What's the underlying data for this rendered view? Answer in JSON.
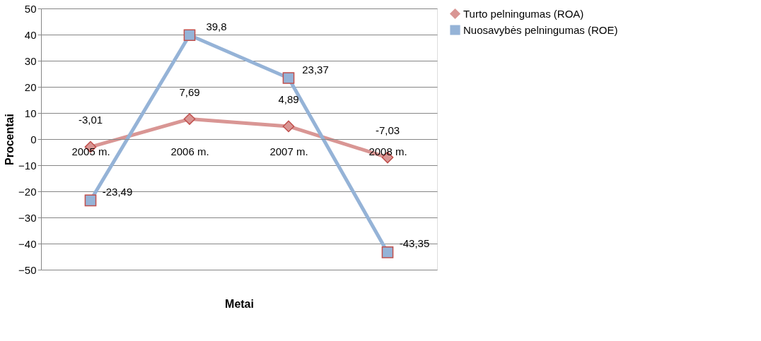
{
  "chart_data": {
    "type": "line",
    "xlabel": "Metai",
    "ylabel": "Procentai",
    "categories": [
      "2005 m.",
      "2006 m.",
      "2007 m.",
      "2008 m."
    ],
    "series": [
      {
        "name": "Turto pelningumas (ROA)",
        "color": "#d99694",
        "marker": "diamond",
        "values": [
          -3.01,
          7.69,
          4.89,
          -7.03
        ],
        "value_labels": [
          "-3,01",
          "7,69",
          "4,89",
          "-7,03"
        ]
      },
      {
        "name": "Nuosavybės pelningumas (ROE)",
        "color": "#95b3d7",
        "marker": "square",
        "values": [
          -23.49,
          39.8,
          23.37,
          -43.35
        ],
        "value_labels": [
          "-23,49",
          "39,8",
          "23,37",
          "-43,35"
        ]
      }
    ],
    "ylim": [
      -50,
      50
    ],
    "yticks": [
      -50,
      -40,
      -30,
      -20,
      -10,
      0,
      10,
      20,
      30,
      40,
      50
    ],
    "grid": "y",
    "legend": "right"
  }
}
